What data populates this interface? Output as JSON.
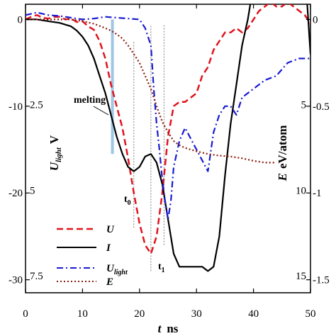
{
  "chart_data": {
    "type": "line",
    "xlabel": {
      "main": "t",
      "unit": "ns"
    },
    "xlim": [
      0,
      50
    ],
    "x_ticks": [
      0,
      10,
      20,
      30,
      40,
      50
    ],
    "left_outer_axis": {
      "ylim": [
        -31.5,
        1.75
      ],
      "ticks": [
        0,
        -10,
        -20,
        -30
      ],
      "tick_labels": [
        "0",
        "-10",
        "-20",
        "-30"
      ]
    },
    "left_inner_axis": {
      "label_main": "U",
      "label_sub": "light",
      "label_unit": "V",
      "ylim": [
        -0.437,
        8.0
      ],
      "ticks": [
        2.5,
        5,
        7.5
      ],
      "tick_labels": [
        "2.5",
        "5",
        "7.5"
      ]
    },
    "right_outer_axis": {
      "ylim": [
        -1.575,
        0.0875
      ],
      "ticks": [
        0,
        -0.5,
        -1,
        -1.5
      ],
      "tick_labels": [
        "0",
        "-0.5",
        "-1",
        "-1.5"
      ]
    },
    "right_inner_axis": {
      "label_main": "E",
      "label_unit": "eV/atom",
      "ylim": [
        -0.875,
        16.0
      ],
      "ticks": [
        5,
        10,
        15
      ],
      "tick_labels": [
        "5",
        "10",
        "15"
      ]
    },
    "annotations": [
      {
        "text": "melting",
        "x": 8.5,
        "y": -9.6
      },
      {
        "text": "t",
        "sub": "0",
        "x": 17.3,
        "y": -20.9
      },
      {
        "text": "t",
        "sub": "1",
        "x": 23.2,
        "y": -28.7
      }
    ],
    "markers": {
      "melting_band": {
        "x": [
          15.0,
          15.5
        ],
        "y": [
          -15.5,
          0
        ]
      },
      "dotted_lines": [
        {
          "x": 19.0,
          "y": [
            -24,
            -2.5
          ]
        },
        {
          "x": 22.0,
          "y": [
            -29,
            -0.6
          ]
        },
        {
          "x": 24.3,
          "y": [
            -26,
            -0.6
          ]
        }
      ]
    },
    "legend": {
      "position": "bottom-left",
      "entries": [
        "U",
        "I",
        "U_light",
        "E"
      ]
    },
    "series": [
      {
        "name": "U",
        "color": "#e0141e",
        "dash": "9,5",
        "x": [
          0,
          1,
          2,
          3,
          4,
          5,
          6,
          7,
          8,
          9,
          10,
          11,
          12,
          13,
          14,
          15,
          16,
          17,
          18,
          19,
          20,
          21,
          22,
          23,
          24,
          25,
          26,
          27,
          28,
          29,
          30,
          31,
          32,
          33,
          34,
          35,
          36,
          37,
          38,
          39,
          40,
          41,
          42,
          43,
          44,
          45,
          46,
          47,
          48,
          49,
          50
        ],
        "y": [
          0,
          0.3,
          0.5,
          0.2,
          0.1,
          0.3,
          0.3,
          0,
          0.1,
          -0.3,
          -0.2,
          -0.8,
          -1.2,
          -2.5,
          -4.5,
          -7.5,
          -10,
          -12.5,
          -16,
          -20,
          -23.5,
          -26,
          -27,
          -25,
          -20,
          -13.5,
          -10,
          -9.5,
          -9.5,
          -9,
          -8.5,
          -6.5,
          -5.5,
          -3.5,
          -2.5,
          -1.5,
          -1.5,
          -1,
          -1.5,
          -1,
          0,
          1,
          1.5,
          2,
          1.5,
          1.5,
          2,
          1.5,
          1,
          0.5,
          -0.5
        ]
      },
      {
        "name": "I",
        "color": "#000000",
        "dash": "",
        "x": [
          0,
          2,
          4,
          6,
          8,
          9,
          10,
          11,
          12,
          13,
          14,
          15,
          16,
          17,
          18,
          19,
          20,
          21,
          22,
          23,
          24,
          25,
          26,
          27,
          28,
          29,
          30,
          31,
          32,
          33,
          34,
          35,
          36,
          37,
          38,
          39,
          40,
          41,
          42,
          43,
          44,
          45,
          46,
          47,
          48,
          49,
          50
        ],
        "y": [
          0,
          0,
          -0.2,
          -0.4,
          -0.8,
          -1.3,
          -2,
          -3,
          -4.5,
          -6.5,
          -8.5,
          -11,
          -13.5,
          -15.5,
          -17,
          -17.5,
          -17,
          -15.8,
          -15.5,
          -16.5,
          -19,
          -23,
          -27,
          -28.5,
          -28.5,
          -28.5,
          -28.5,
          -28.5,
          -29,
          -28.5,
          -25,
          -18,
          -12,
          -7.5,
          -3,
          0,
          4,
          7,
          10,
          12.5,
          16,
          19,
          21.5,
          22.5,
          18,
          6,
          -4
        ]
      },
      {
        "name": "U_light",
        "color": "#1a1ad0",
        "dash": "9,4,2,4",
        "x": [
          0,
          2,
          4,
          6,
          8,
          10,
          12,
          14,
          16,
          18,
          20,
          21,
          22,
          22.5,
          23,
          23.5,
          24,
          24.5,
          25,
          25.5,
          26,
          27,
          28,
          30,
          32,
          33,
          34,
          35,
          36,
          37,
          38,
          40,
          42,
          44,
          46,
          48,
          50
        ],
        "y": [
          0.5,
          0.8,
          0.5,
          0.4,
          0.2,
          0,
          0.1,
          0.3,
          0.2,
          0.1,
          0,
          -1,
          -3,
          -8,
          -12,
          -15,
          -18.5,
          -21,
          -23,
          -21,
          -17,
          -14,
          -12.5,
          -15,
          -17.5,
          -13,
          -11,
          -10,
          -10,
          -11,
          -9,
          -8,
          -7,
          -6.5,
          -5,
          -4.5,
          -4.5
        ]
      },
      {
        "name": "E",
        "color": "#8b1a0a",
        "dash": "2,3",
        "x": [
          0,
          4,
          8,
          10,
          12,
          14,
          15,
          16,
          17,
          18,
          19,
          20,
          21,
          22,
          23,
          24,
          25,
          26,
          27,
          28,
          30,
          32,
          34,
          36,
          38,
          40,
          42,
          44
        ],
        "y": [
          0,
          0,
          0,
          -0.2,
          -0.5,
          -1,
          -1.3,
          -1.7,
          -2.2,
          -3,
          -4,
          -5,
          -6.5,
          -8,
          -10,
          -11.8,
          -13,
          -14,
          -14.5,
          -14.8,
          -15.2,
          -15.5,
          -15.7,
          -15.8,
          -16,
          -16.3,
          -16.5,
          -16.5
        ]
      }
    ]
  }
}
